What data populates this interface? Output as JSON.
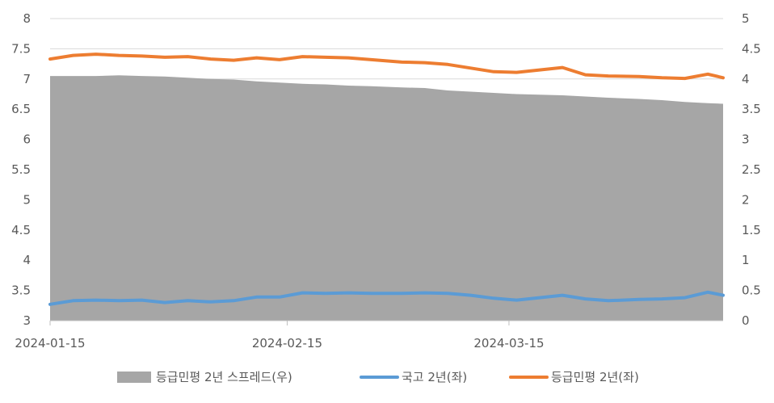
{
  "chart_data": {
    "type": "line",
    "x_tick_labels": [
      "2024-01-15",
      "2024-02-15",
      "2024-03-15"
    ],
    "x_tick_dates": [
      "2024-01-15",
      "2024-02-15",
      "2024-03-15"
    ],
    "x_range": [
      "2024-01-15",
      "2024-04-12"
    ],
    "y_left": {
      "min": 3,
      "max": 8,
      "ticks": [
        "3",
        "3.5",
        "4",
        "4.5",
        "5",
        "5.5",
        "6",
        "6.5",
        "7",
        "7.5",
        "8"
      ]
    },
    "y_right": {
      "min": 0,
      "max": 5,
      "ticks": [
        "0",
        "0.5",
        "1",
        "1.5",
        "2",
        "2.5",
        "3",
        "3.5",
        "4",
        "4.5",
        "5"
      ]
    },
    "grid": "horizontal",
    "legend_position": "bottom",
    "series": [
      {
        "name": "등급민평 2년 스프레드(우)",
        "kind": "area",
        "axis": "right",
        "color": "#a6a6a6",
        "points": [
          [
            "2024-01-15",
            4.05
          ],
          [
            "2024-01-18",
            4.05
          ],
          [
            "2024-01-21",
            4.05
          ],
          [
            "2024-01-24",
            4.06
          ],
          [
            "2024-01-27",
            4.05
          ],
          [
            "2024-01-30",
            4.04
          ],
          [
            "2024-02-02",
            4.02
          ],
          [
            "2024-02-05",
            4.0
          ],
          [
            "2024-02-08",
            3.99
          ],
          [
            "2024-02-11",
            3.96
          ],
          [
            "2024-02-14",
            3.94
          ],
          [
            "2024-02-17",
            3.92
          ],
          [
            "2024-02-20",
            3.91
          ],
          [
            "2024-02-23",
            3.89
          ],
          [
            "2024-02-26",
            3.88
          ],
          [
            "2024-03-01",
            3.86
          ],
          [
            "2024-03-04",
            3.85
          ],
          [
            "2024-03-07",
            3.81
          ],
          [
            "2024-03-10",
            3.79
          ],
          [
            "2024-03-13",
            3.77
          ],
          [
            "2024-03-16",
            3.75
          ],
          [
            "2024-03-19",
            3.74
          ],
          [
            "2024-03-22",
            3.73
          ],
          [
            "2024-03-25",
            3.71
          ],
          [
            "2024-03-28",
            3.69
          ],
          [
            "2024-04-01",
            3.67
          ],
          [
            "2024-04-04",
            3.65
          ],
          [
            "2024-04-07",
            3.62
          ],
          [
            "2024-04-10",
            3.6
          ],
          [
            "2024-04-12",
            3.59
          ]
        ]
      },
      {
        "name": "국고 2년(좌)",
        "kind": "line",
        "axis": "left",
        "color": "#5b9bd5",
        "points": [
          [
            "2024-01-15",
            3.27
          ],
          [
            "2024-01-18",
            3.33
          ],
          [
            "2024-01-21",
            3.34
          ],
          [
            "2024-01-24",
            3.33
          ],
          [
            "2024-01-27",
            3.34
          ],
          [
            "2024-01-30",
            3.3
          ],
          [
            "2024-02-02",
            3.33
          ],
          [
            "2024-02-05",
            3.31
          ],
          [
            "2024-02-08",
            3.33
          ],
          [
            "2024-02-11",
            3.39
          ],
          [
            "2024-02-14",
            3.39
          ],
          [
            "2024-02-17",
            3.46
          ],
          [
            "2024-02-20",
            3.45
          ],
          [
            "2024-02-23",
            3.46
          ],
          [
            "2024-02-26",
            3.45
          ],
          [
            "2024-03-01",
            3.45
          ],
          [
            "2024-03-04",
            3.46
          ],
          [
            "2024-03-07",
            3.45
          ],
          [
            "2024-03-10",
            3.42
          ],
          [
            "2024-03-13",
            3.37
          ],
          [
            "2024-03-16",
            3.34
          ],
          [
            "2024-03-19",
            3.38
          ],
          [
            "2024-03-22",
            3.42
          ],
          [
            "2024-03-25",
            3.36
          ],
          [
            "2024-03-28",
            3.33
          ],
          [
            "2024-04-01",
            3.35
          ],
          [
            "2024-04-04",
            3.36
          ],
          [
            "2024-04-07",
            3.38
          ],
          [
            "2024-04-10",
            3.47
          ],
          [
            "2024-04-12",
            3.42
          ]
        ]
      },
      {
        "name": "등급민평 2년(좌)",
        "kind": "line",
        "axis": "left",
        "color": "#ed7d31",
        "points": [
          [
            "2024-01-15",
            7.33
          ],
          [
            "2024-01-18",
            7.39
          ],
          [
            "2024-01-21",
            7.41
          ],
          [
            "2024-01-24",
            7.39
          ],
          [
            "2024-01-27",
            7.38
          ],
          [
            "2024-01-30",
            7.36
          ],
          [
            "2024-02-02",
            7.37
          ],
          [
            "2024-02-05",
            7.33
          ],
          [
            "2024-02-08",
            7.31
          ],
          [
            "2024-02-11",
            7.35
          ],
          [
            "2024-02-14",
            7.32
          ],
          [
            "2024-02-17",
            7.37
          ],
          [
            "2024-02-20",
            7.36
          ],
          [
            "2024-02-23",
            7.35
          ],
          [
            "2024-02-26",
            7.32
          ],
          [
            "2024-03-01",
            7.28
          ],
          [
            "2024-03-04",
            7.27
          ],
          [
            "2024-03-07",
            7.24
          ],
          [
            "2024-03-10",
            7.18
          ],
          [
            "2024-03-13",
            7.12
          ],
          [
            "2024-03-16",
            7.11
          ],
          [
            "2024-03-19",
            7.15
          ],
          [
            "2024-03-22",
            7.19
          ],
          [
            "2024-03-25",
            7.07
          ],
          [
            "2024-03-28",
            7.05
          ],
          [
            "2024-04-01",
            7.04
          ],
          [
            "2024-04-04",
            7.02
          ],
          [
            "2024-04-07",
            7.01
          ],
          [
            "2024-04-10",
            7.08
          ],
          [
            "2024-04-12",
            7.02
          ]
        ]
      }
    ]
  }
}
